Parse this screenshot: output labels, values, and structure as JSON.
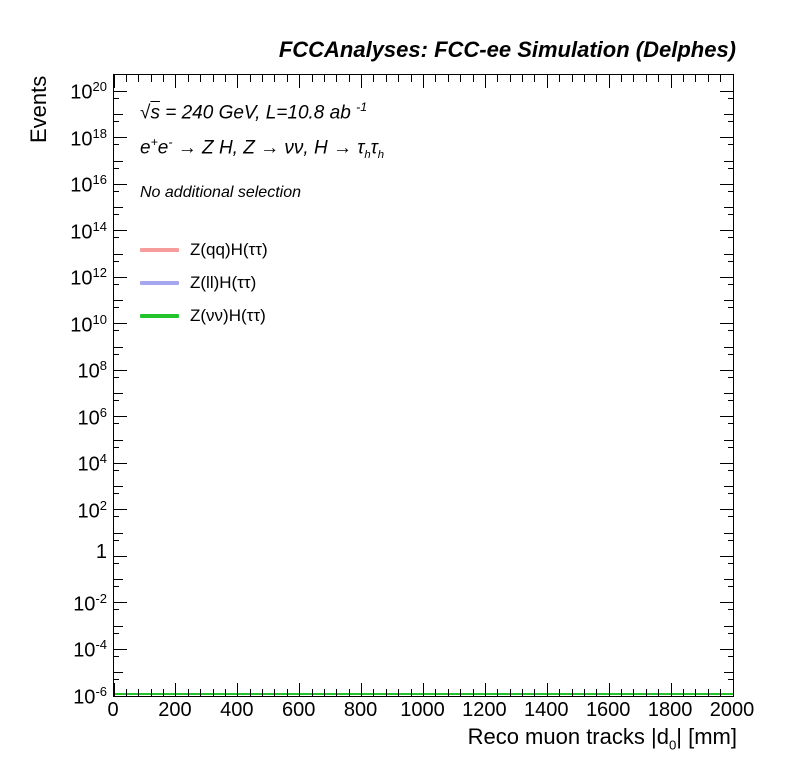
{
  "chart_data": {
    "type": "line",
    "title": "FCCAnalyses: FCC-ee Simulation (Delphes)",
    "xlabel": "Reco muon tracks |d_{0}| [mm]",
    "ylabel": "Events",
    "grid": false,
    "frame_ticks_mirrored": true,
    "x_axis": {
      "min": 0,
      "max": 2000,
      "major_tick_step": 200,
      "minor_tick_step": 40,
      "ticks": [
        {
          "value": 0,
          "label": "0"
        },
        {
          "value": 200,
          "label": "200"
        },
        {
          "value": 400,
          "label": "400"
        },
        {
          "value": 600,
          "label": "600"
        },
        {
          "value": 800,
          "label": "800"
        },
        {
          "value": 1000,
          "label": "1000"
        },
        {
          "value": 1200,
          "label": "1200"
        },
        {
          "value": 1400,
          "label": "1400"
        },
        {
          "value": 1600,
          "label": "1600"
        },
        {
          "value": 1800,
          "label": "1800"
        },
        {
          "value": 2000,
          "label": "2000"
        }
      ]
    },
    "y_axis": {
      "scale": "log",
      "min": "1e-6",
      "max": "5e20",
      "ticks": [
        {
          "exp": 20,
          "label": "10^{20}"
        },
        {
          "exp": 18,
          "label": "10^{18}"
        },
        {
          "exp": 16,
          "label": "10^{16}"
        },
        {
          "exp": 14,
          "label": "10^{14}"
        },
        {
          "exp": 12,
          "label": "10^{12}"
        },
        {
          "exp": 10,
          "label": "10^{10}"
        },
        {
          "exp": 8,
          "label": "10^{8}"
        },
        {
          "exp": 6,
          "label": "10^{6}"
        },
        {
          "exp": 4,
          "label": "10^{4}"
        },
        {
          "exp": 2,
          "label": "10^{2}"
        },
        {
          "exp": 0,
          "label": "1"
        },
        {
          "exp": -2,
          "label": "10^{-2}"
        },
        {
          "exp": -4,
          "label": "10^{-4}"
        },
        {
          "exp": -6,
          "label": "10^{-6}"
        }
      ]
    },
    "annotations": [
      {
        "id": "energy-lumi",
        "text": "#sqrt{s} = 240 GeV, L=10.8 ab ^{-1}"
      },
      {
        "id": "process",
        "text": "e^{+}e^{-} → Z H, Z  → νν, H → τ_{h}τ_{h}"
      },
      {
        "id": "selection",
        "text": "No additional selection"
      }
    ],
    "legend": {
      "position": "upper-left",
      "entries": [
        {
          "label": "Z(qq)H(ττ)",
          "color": "#f79c9c"
        },
        {
          "label": "Z(ll)H(ττ)",
          "color": "#a6a6f0"
        },
        {
          "label": "Z(νν)H(ττ)",
          "color": "#24c32c"
        }
      ]
    },
    "series": [
      {
        "name": "Z(qq)H(ττ)",
        "color": "#f79c9c",
        "visible_shape": "not visible (at or below axis minimum / overlapped)"
      },
      {
        "name": "Z(ll)H(ττ)",
        "color": "#a6a6f0",
        "visible_shape": "not visible (at or below axis minimum / overlapped)"
      },
      {
        "name": "Z(νν)H(ττ)",
        "color": "#24c32c",
        "visible_shape": "flat line at axis minimum",
        "y_value": 1e-06,
        "x_range": [
          0,
          2000
        ]
      }
    ]
  }
}
